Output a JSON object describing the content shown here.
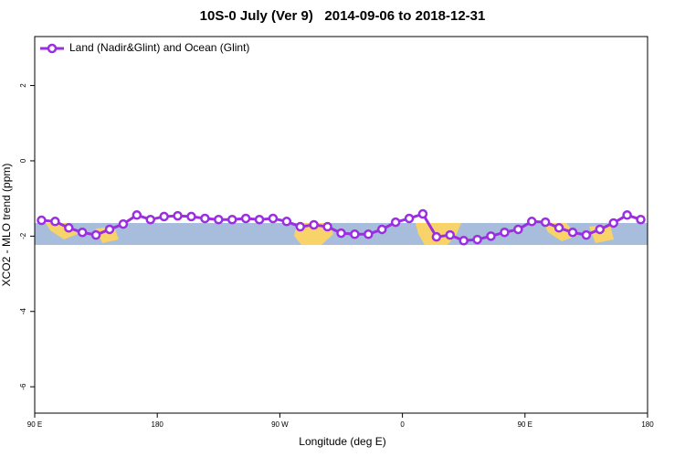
{
  "chart_data": {
    "type": "line",
    "title": "10S-0 July (Ver 9)   2014-09-06 to 2018-12-31",
    "x_label": "Longitude (deg E)",
    "y_label": "XCO2 - MLO trend (ppm)",
    "xlim": [
      90,
      540
    ],
    "xticks": [
      {
        "value": 90,
        "label": "90 E"
      },
      {
        "value": 180,
        "label": "180"
      },
      {
        "value": 270,
        "label": "90 W"
      },
      {
        "value": 360,
        "label": "0"
      },
      {
        "value": 450,
        "label": "90 E"
      },
      {
        "value": 540,
        "label": "180"
      }
    ],
    "ylim": [
      -6.7,
      3.3
    ],
    "yticks": [
      -6,
      -4,
      -2,
      0,
      2
    ],
    "legend": "top-left",
    "x": [
      95,
      105,
      115,
      125,
      135,
      145,
      155,
      165,
      175,
      185,
      195,
      205,
      215,
      225,
      235,
      245,
      255,
      265,
      275,
      285,
      295,
      305,
      315,
      325,
      335,
      345,
      355,
      365,
      375,
      385,
      395,
      405,
      415,
      425,
      435,
      445,
      455,
      465,
      475,
      485,
      495,
      505,
      515,
      525,
      535
    ],
    "series": [
      {
        "name": "Land (Nadir&Glint) and Ocean (Glint)",
        "color": "#9a2ee0",
        "values": [
          -1.58,
          -1.61,
          -1.78,
          -1.9,
          -1.97,
          -1.82,
          -1.68,
          -1.44,
          -1.56,
          -1.48,
          -1.46,
          -1.48,
          -1.53,
          -1.56,
          -1.56,
          -1.53,
          -1.56,
          -1.53,
          -1.61,
          -1.75,
          -1.7,
          -1.75,
          -1.92,
          -1.95,
          -1.95,
          -1.82,
          -1.63,
          -1.53,
          -1.41,
          -2.02,
          -1.97,
          -2.12,
          -2.09,
          -2.0,
          -1.9,
          -1.82,
          -1.61,
          -1.63,
          -1.78,
          -1.9,
          -1.97,
          -1.82,
          -1.65,
          -1.44,
          -1.56
        ]
      }
    ]
  }
}
